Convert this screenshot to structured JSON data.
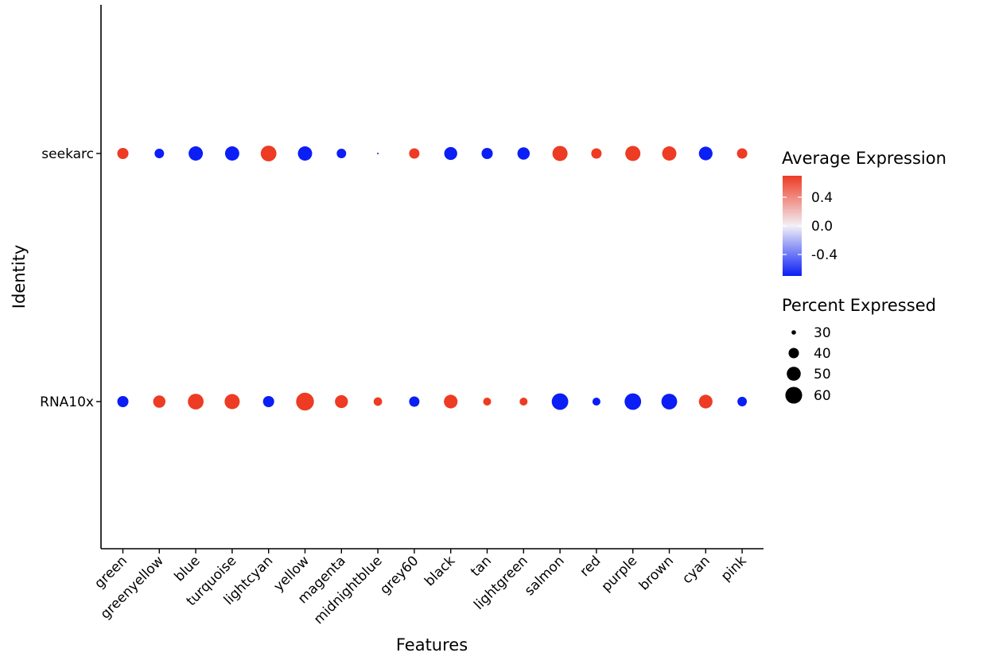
{
  "chart_data": {
    "type": "scatter",
    "subtype": "dot-plot",
    "xlabel": "Features",
    "ylabel": "Identity",
    "categories": [
      "green",
      "greenyellow",
      "blue",
      "turquoise",
      "lightcyan",
      "yellow",
      "magenta",
      "midnightblue",
      "grey60",
      "black",
      "tan",
      "lightgreen",
      "salmon",
      "red",
      "purple",
      "brown",
      "cyan",
      "pink"
    ],
    "identities": [
      "seekarc",
      "RNA10x"
    ],
    "series": [
      {
        "identity": "seekarc",
        "avg_expression": [
          0.7,
          -0.7,
          -0.7,
          -0.7,
          0.7,
          -0.7,
          -0.7,
          -0.7,
          0.7,
          -0.7,
          -0.7,
          -0.7,
          0.7,
          0.7,
          0.7,
          0.7,
          -0.7,
          0.7
        ],
        "pct_expressed": [
          42,
          38,
          51,
          51,
          56,
          51,
          38,
          28,
          40,
          47,
          42,
          45,
          54,
          40,
          54,
          51,
          49,
          40
        ]
      },
      {
        "identity": "RNA10x",
        "avg_expression": [
          -0.7,
          0.7,
          0.7,
          0.7,
          -0.7,
          0.7,
          0.7,
          0.7,
          -0.7,
          0.7,
          0.7,
          0.7,
          -0.7,
          -0.7,
          -0.7,
          -0.7,
          0.7,
          -0.7
        ],
        "pct_expressed": [
          42,
          45,
          56,
          54,
          42,
          64,
          47,
          36,
          40,
          49,
          35,
          35,
          59,
          35,
          59,
          56,
          49,
          38
        ]
      }
    ],
    "color_legend": {
      "title": "Average Expression",
      "ticks": [
        "0.4",
        "0.0",
        "-0.4"
      ],
      "tick_values": [
        0.4,
        0.0,
        -0.4
      ],
      "range": [
        -0.7,
        0.7
      ],
      "low_color": "#0a1ef5",
      "mid_color": "#f2f0f7",
      "high_color": "#ee3b24"
    },
    "size_legend": {
      "title": "Percent Expressed",
      "labels": [
        "30",
        "40",
        "50",
        "60"
      ],
      "values": [
        30,
        40,
        50,
        60
      ]
    },
    "grid": false,
    "legend_position": "right"
  }
}
